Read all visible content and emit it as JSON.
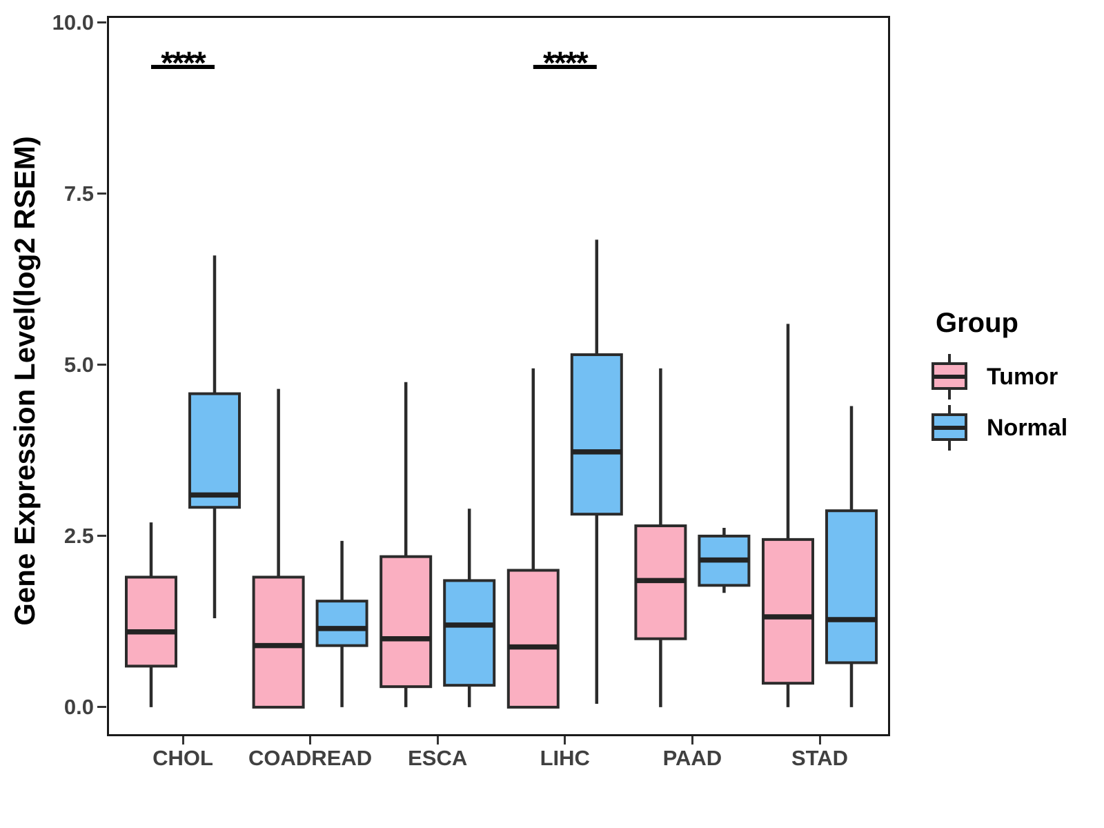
{
  "chart_data": {
    "type": "boxplot",
    "title": "",
    "ylabel": "Gene Expression Level(log2 RSEM)",
    "xlabel": "",
    "ylim": [
      0,
      10
    ],
    "yticks": [
      0,
      2.5,
      5,
      7.5,
      10
    ],
    "ytick_labels": [
      "0.0",
      "2.5",
      "5.0",
      "7.5",
      "10.0"
    ],
    "grid": false,
    "legend_position": "right",
    "categories": [
      "CHOL",
      "COADREAD",
      "ESCA",
      "LIHC",
      "PAAD",
      "STAD"
    ],
    "series": [
      {
        "name": "Tumor",
        "color": "#FAAFC1",
        "boxes": [
          {
            "category": "CHOL",
            "whisker_low": 0.0,
            "q1": 0.6,
            "median": 1.1,
            "q3": 1.9,
            "whisker_high": 2.7
          },
          {
            "category": "COADREAD",
            "whisker_low": 0.0,
            "q1": 0.0,
            "median": 0.9,
            "q3": 1.9,
            "whisker_high": 4.65
          },
          {
            "category": "ESCA",
            "whisker_low": 0.0,
            "q1": 0.3,
            "median": 1.0,
            "q3": 2.2,
            "whisker_high": 4.75
          },
          {
            "category": "LIHC",
            "whisker_low": 0.0,
            "q1": 0.0,
            "median": 0.88,
            "q3": 2.0,
            "whisker_high": 4.95
          },
          {
            "category": "PAAD",
            "whisker_low": 0.0,
            "q1": 1.0,
            "median": 1.85,
            "q3": 2.65,
            "whisker_high": 4.95
          },
          {
            "category": "STAD",
            "whisker_low": 0.0,
            "q1": 0.35,
            "median": 1.32,
            "q3": 2.45,
            "whisker_high": 5.6
          }
        ]
      },
      {
        "name": "Normal",
        "color": "#73BFF3",
        "boxes": [
          {
            "category": "CHOL",
            "whisker_low": 1.3,
            "q1": 2.92,
            "median": 3.1,
            "q3": 4.58,
            "whisker_high": 6.6
          },
          {
            "category": "COADREAD",
            "whisker_low": 0.0,
            "q1": 0.9,
            "median": 1.15,
            "q3": 1.55,
            "whisker_high": 2.43
          },
          {
            "category": "ESCA",
            "whisker_low": 0.0,
            "q1": 0.32,
            "median": 1.2,
            "q3": 1.85,
            "whisker_high": 2.9
          },
          {
            "category": "LIHC",
            "whisker_low": 0.05,
            "q1": 2.82,
            "median": 3.73,
            "q3": 5.15,
            "whisker_high": 6.83
          },
          {
            "category": "PAAD",
            "whisker_low": 1.67,
            "q1": 1.78,
            "median": 2.15,
            "q3": 2.5,
            "whisker_high": 2.62
          },
          {
            "category": "STAD",
            "whisker_low": 0.0,
            "q1": 0.65,
            "median": 1.28,
            "q3": 2.87,
            "whisker_high": 4.4
          }
        ]
      }
    ],
    "annotations": [
      {
        "category": "CHOL",
        "label": "****"
      },
      {
        "category": "LIHC",
        "label": "****"
      }
    ]
  },
  "legend": {
    "title": "Group",
    "items": [
      {
        "label": "Tumor",
        "color": "#FAAFC1"
      },
      {
        "label": "Normal",
        "color": "#73BFF3"
      }
    ]
  },
  "colors": {
    "box_border": "#2B2B2B",
    "median_line": "#232323",
    "panel_border": "#1A1A1A",
    "axis_text": "#404040",
    "annotation": "#000000"
  }
}
